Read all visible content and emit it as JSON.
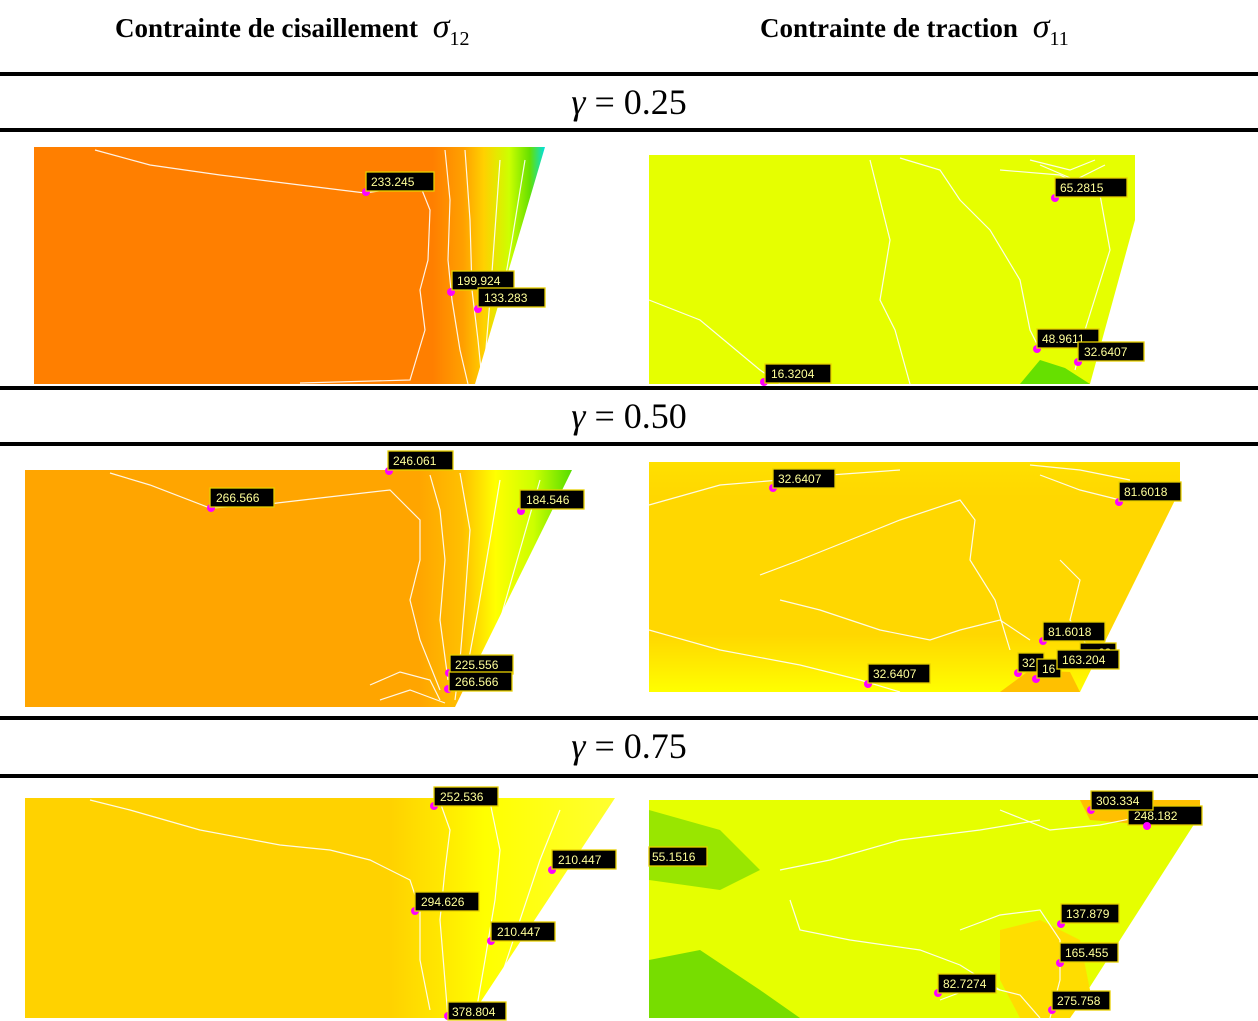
{
  "headers": {
    "left": {
      "text": "Contrainte de cisaillement",
      "symbol": "σ",
      "sub": "12"
    },
    "right": {
      "text": "Contrainte de traction",
      "symbol": "σ",
      "sub": "11"
    }
  },
  "rows": [
    {
      "gamma_symbol": "γ",
      "gamma_rest": " = 0.25"
    },
    {
      "gamma_symbol": "γ",
      "gamma_rest": " = 0.50"
    },
    {
      "gamma_symbol": "γ",
      "gamma_rest": " = 0.75"
    }
  ],
  "labels": {
    "r1_left": [
      "233.245",
      "199.924",
      "133.283"
    ],
    "r1_right": [
      "65.2815",
      "48.9611",
      "32.6407",
      "16.3204"
    ],
    "r2_left": [
      "246.061",
      "266.566",
      "184.546",
      "225.556",
      "266.566"
    ],
    "r2_right": [
      "32.6407",
      "81.6018",
      "81.6018",
      "32.6407",
      "32",
      "16",
      "163.204",
      "63"
    ],
    "r3_left": [
      "252.536",
      "210.447",
      "294.626",
      "210.447",
      "378.804"
    ],
    "r3_right": [
      "303.334",
      "248.182",
      "55.1516",
      "137.879",
      "165.455",
      "82.7274",
      "275.758"
    ]
  },
  "colors": {
    "orange_deep": "#ff7f00",
    "orange": "#ffa500",
    "amber": "#ffc000",
    "gold": "#ffd700",
    "yellow": "#ffff00",
    "yellow_green": "#e6ff00",
    "lime": "#ccff00",
    "green": "#66e000",
    "cyan": "#00e0e0",
    "label_text": "#ffff99",
    "marker": "#ff00ff"
  }
}
